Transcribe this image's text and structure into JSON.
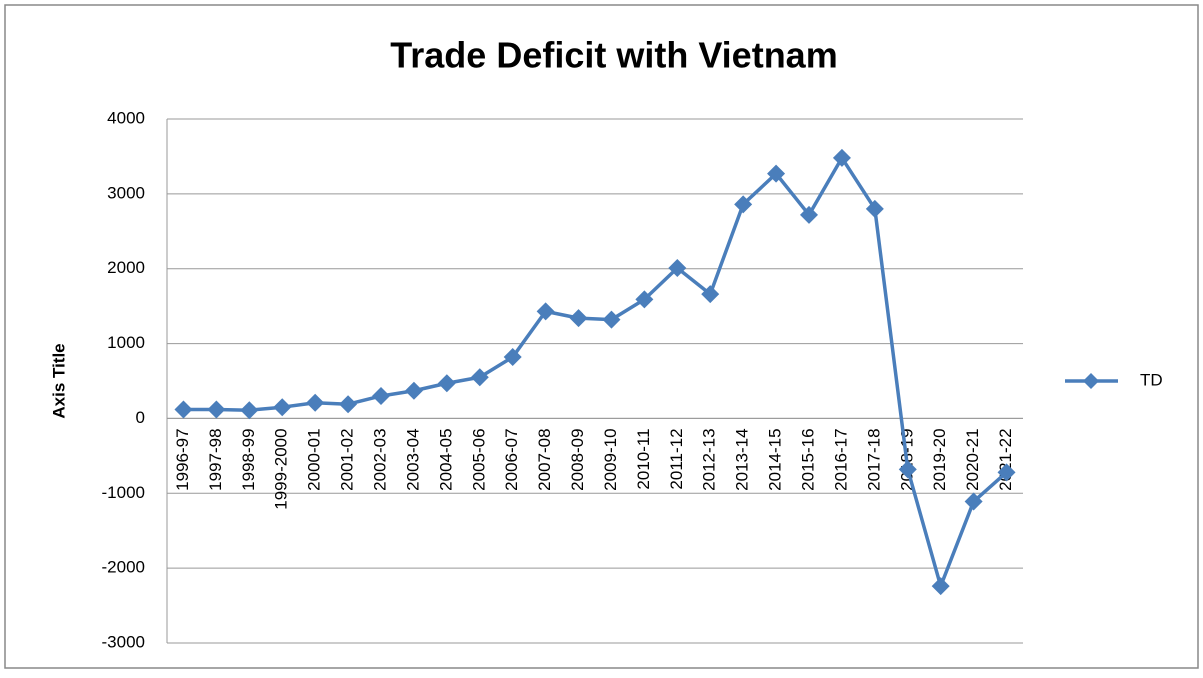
{
  "chart_data": {
    "type": "line",
    "title": "Trade Deficit with Vietnam",
    "y_label": "Axis Title",
    "categories": [
      "1996-97",
      "1997-98",
      "1998-99",
      "1999-2000",
      "2000-01",
      "2001-02",
      "2002-03",
      "2003-04",
      "2004-05",
      "2005-06",
      "2006-07",
      "2007-08",
      "2008-09",
      "2009-10",
      "2010-11",
      "2011-12",
      "2012-13",
      "2013-14",
      "2014-15",
      "2015-16",
      "2016-17",
      "2017-18",
      "2018-19",
      "2019-20",
      "2020-21",
      "2021-22"
    ],
    "series": [
      {
        "name": "TD",
        "color": "#4a7ebb",
        "values": [
          120,
          120,
          110,
          150,
          210,
          190,
          300,
          370,
          470,
          550,
          820,
          1430,
          1340,
          1320,
          1590,
          2010,
          1660,
          2860,
          3270,
          2720,
          3480,
          2800,
          -680,
          -2240,
          -1110,
          -720
        ]
      }
    ],
    "ylim": [
      -3000,
      4000
    ],
    "yticks": [
      -3000,
      -2000,
      -1000,
      0,
      1000,
      2000,
      3000,
      4000
    ],
    "grid": true,
    "legend": "right"
  }
}
